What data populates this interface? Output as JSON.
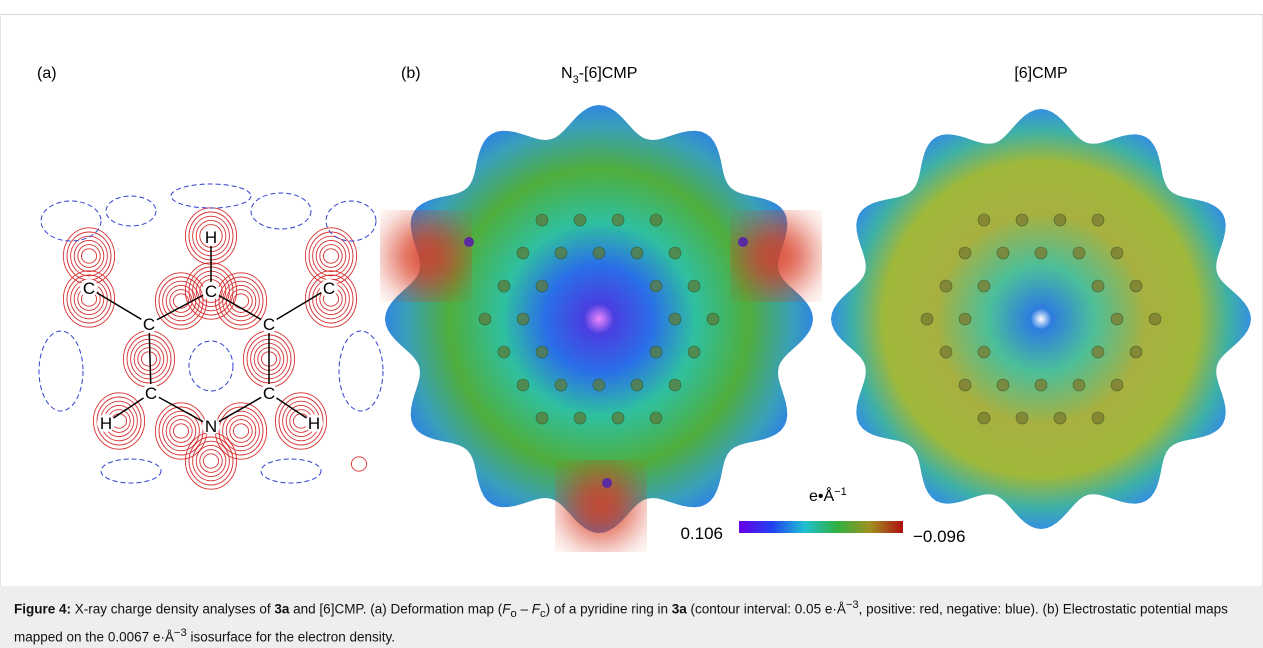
{
  "panels": {
    "a": {
      "label": "(a)",
      "atoms": [
        "C",
        "H",
        "C",
        "C",
        "C",
        "C",
        "C",
        "C",
        "H",
        "N",
        "H"
      ]
    },
    "b": {
      "label": "(b)",
      "title_left": [
        "N",
        "3",
        "-[6]CMP"
      ],
      "title_right": "[6]CMP",
      "colorbar": {
        "unit": [
          "e•Å",
          "−1"
        ],
        "min_label": "0.106",
        "max_label": "−0.096"
      }
    }
  },
  "caption": [
    "Figure 4:",
    " X-ray charge density analyses of ",
    "3a",
    " and [6]CMP. (a) Deformation map (",
    "F",
    "o",
    " – ",
    "F",
    "c",
    ") of a pyridine ring in ",
    "3a",
    " (contour interval: 0.05 e·Å",
    "−3",
    ", positive: red, negative: blue). (b) Electrostatic potential maps mapped on the 0.0067 e·Å",
    "−3",
    " isosurface for the electron density."
  ]
}
